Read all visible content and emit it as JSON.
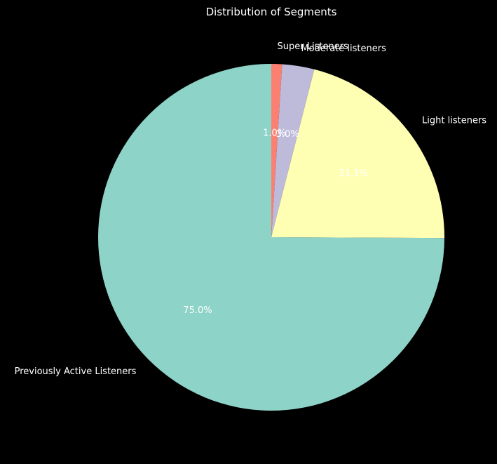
{
  "chart_data": {
    "type": "pie",
    "title": "Distribution of Segments",
    "start_angle_deg": 90,
    "direction": "clockwise",
    "colors_note": "Set3 palette",
    "slices": [
      {
        "label": "Super Listeners",
        "value": 1.0,
        "pct_label": "1.0%",
        "color": "#fb8072"
      },
      {
        "label": "Moderate listeners",
        "value": 3.0,
        "pct_label": "3.0%",
        "color": "#bebada"
      },
      {
        "label": "Light listeners",
        "value": 21.1,
        "pct_label": "21.1%",
        "color": "#ffffb3"
      },
      {
        "label": "Previously Active Listeners",
        "value": 75.0,
        "pct_label": "75.0%",
        "color": "#8dd3c7"
      }
    ]
  },
  "background_color": "#000000",
  "text_color": "#ffffff"
}
